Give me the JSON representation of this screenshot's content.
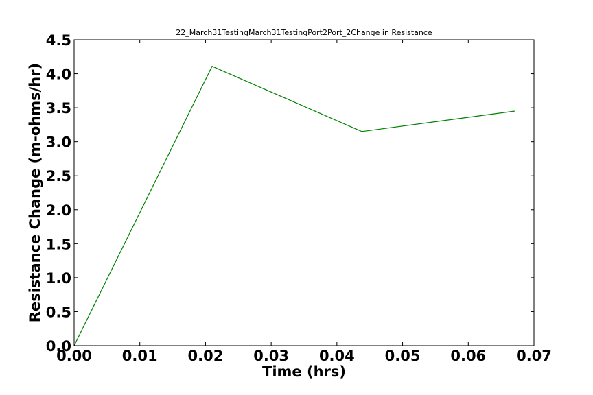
{
  "chart_data": {
    "type": "line",
    "title": "22_March31TestingMarch31TestingPort2Port_2Change in Resistance",
    "xlabel": "Time (hrs)",
    "ylabel": "Resistance Change (m-ohms/hr)",
    "xlim": [
      0.0,
      0.07
    ],
    "ylim": [
      0.0,
      4.5
    ],
    "xticks": [
      "0.00",
      "0.01",
      "0.02",
      "0.03",
      "0.04",
      "0.05",
      "0.06",
      "0.07"
    ],
    "yticks": [
      "0.0",
      "0.5",
      "1.0",
      "1.5",
      "2.0",
      "2.5",
      "3.0",
      "3.5",
      "4.0",
      "4.5"
    ],
    "grid": false,
    "series": [
      {
        "color": "#008000",
        "x": [
          0.0,
          0.021,
          0.0438,
          0.067
        ],
        "y": [
          0.0,
          4.11,
          3.15,
          3.45
        ]
      }
    ]
  }
}
